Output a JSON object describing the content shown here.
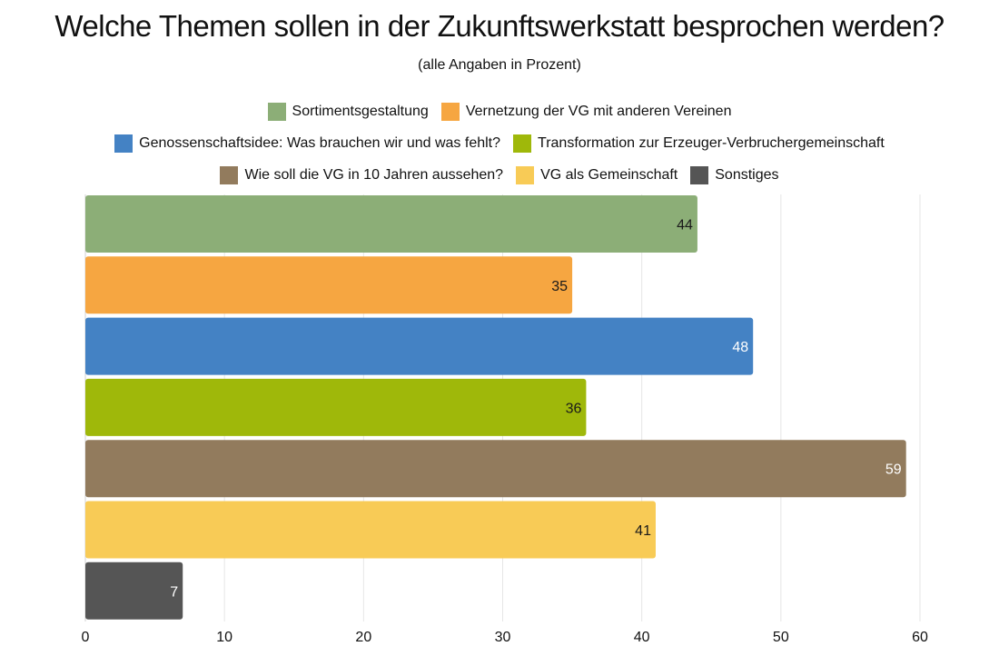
{
  "chart_data": {
    "type": "bar",
    "orientation": "horizontal",
    "title": "Welche Themen sollen in der Zukunftswerkstatt besprochen werden?",
    "subtitle": "(alle Angaben in Prozent)",
    "legend_position": "top",
    "grid": true,
    "xlim": [
      0,
      60
    ],
    "x_ticks": [
      "0",
      "10",
      "20",
      "30",
      "40",
      "50",
      "60"
    ],
    "x_tick_values": [
      0,
      10,
      20,
      30,
      40,
      50,
      60
    ],
    "legend_rows": [
      [
        0,
        1
      ],
      [
        2,
        3
      ],
      [
        4,
        5,
        6
      ]
    ],
    "series": [
      {
        "name": "Sortimentsgestaltung",
        "value": 44,
        "color": "#8cae77",
        "label_color": "#1a1a1a"
      },
      {
        "name": "Vernetzung der VG mit anderen Vereinen",
        "value": 35,
        "color": "#f6a641",
        "label_color": "#1a1a1a"
      },
      {
        "name": "Genossenschaftsidee: Was brauchen wir und was fehlt?",
        "value": 48,
        "color": "#4482c4",
        "label_color": "#ffffff"
      },
      {
        "name": "Transformation zur Erzeuger-Verbruchergemeinschaft",
        "value": 36,
        "color": "#9fb80a",
        "label_color": "#1a1a1a"
      },
      {
        "name": "Wie soll die VG in 10 Jahren aussehen?",
        "value": 59,
        "color": "#927b5d",
        "label_color": "#ffffff"
      },
      {
        "name": "VG als Gemeinschaft",
        "value": 41,
        "color": "#f8cb56",
        "label_color": "#1a1a1a"
      },
      {
        "name": "Sonstiges",
        "value": 7,
        "color": "#555555",
        "label_color": "#ffffff"
      }
    ]
  }
}
